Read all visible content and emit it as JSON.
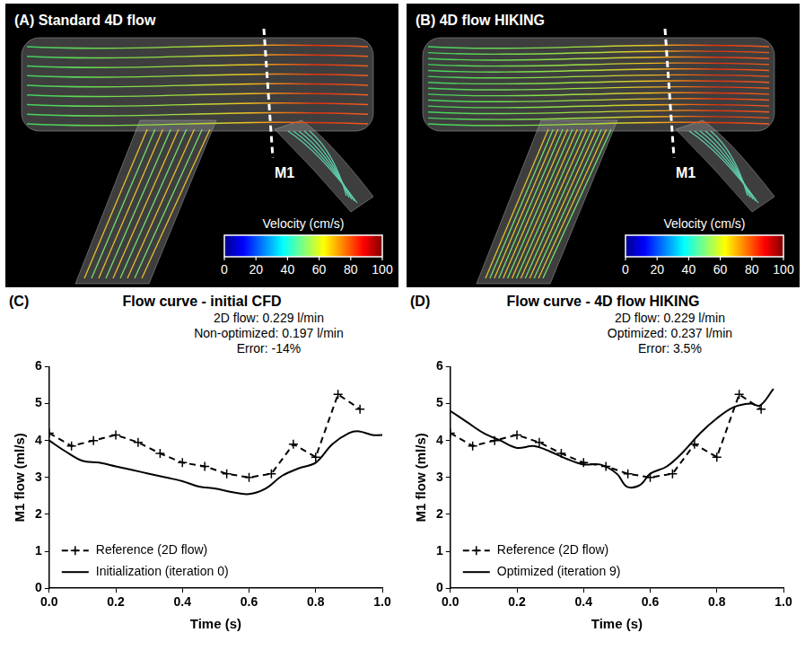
{
  "images": [
    {
      "panel": "(A)",
      "title": "Standard 4D flow",
      "marker_label": "M1",
      "colorbar": {
        "label": "Velocity (cm/s)",
        "range": [
          0,
          100
        ],
        "ticks": [
          0,
          20,
          40,
          60,
          80,
          100
        ]
      }
    },
    {
      "panel": "(B)",
      "title": "4D flow HIKING",
      "marker_label": "M1",
      "colorbar": {
        "label": "Velocity (cm/s)",
        "range": [
          0,
          100
        ],
        "ticks": [
          0,
          20,
          40,
          60,
          80,
          100
        ]
      }
    }
  ],
  "chart_data": [
    {
      "type": "line",
      "panel": "(C)",
      "title": "Flow curve - initial CFD",
      "annotations": [
        "2D flow: 0.229 l/min",
        "Non-optimized: 0.197 l/min",
        "Error: -14%"
      ],
      "x_label": "Time (s)",
      "y_label": "M1 flow (ml/s)",
      "xlim": [
        0,
        1
      ],
      "xticks": [
        {
          "value": 0,
          "label": "0.0"
        },
        0.2,
        0.4,
        0.6,
        0.8,
        {
          "value": 1,
          "label": "1.0"
        }
      ],
      "ylim": [
        0,
        6
      ],
      "yticks": [
        0,
        1,
        2,
        3,
        4,
        5,
        6
      ],
      "grid": false,
      "legend": "lower left",
      "series": [
        {
          "name": "Reference (2D flow)",
          "color": "#000000",
          "line_style": "dashed",
          "marker": "plus",
          "x": [
            0,
            0.067,
            0.133,
            0.2,
            0.267,
            0.333,
            0.4,
            0.467,
            0.533,
            0.6,
            0.667,
            0.733,
            0.8,
            0.867,
            0.933
          ],
          "values": [
            4.2,
            3.85,
            4.0,
            4.15,
            3.95,
            3.65,
            3.4,
            3.3,
            3.1,
            3.0,
            3.1,
            3.9,
            3.55,
            5.25,
            4.85
          ]
        },
        {
          "name": "Initialization (iteration 0)",
          "color": "#000000",
          "line_style": "solid",
          "marker": "none",
          "x": [
            0,
            0.05,
            0.1,
            0.15,
            0.2,
            0.25,
            0.3,
            0.35,
            0.4,
            0.45,
            0.5,
            0.55,
            0.6,
            0.65,
            0.7,
            0.75,
            0.8,
            0.85,
            0.9,
            0.93,
            0.97,
            1.0
          ],
          "values": [
            4.0,
            3.7,
            3.45,
            3.4,
            3.3,
            3.2,
            3.1,
            3.0,
            2.9,
            2.75,
            2.7,
            2.6,
            2.55,
            2.7,
            3.05,
            3.25,
            3.4,
            3.9,
            4.2,
            4.25,
            4.15,
            4.15
          ]
        }
      ]
    },
    {
      "type": "line",
      "panel": "(D)",
      "title": "Flow curve - 4D flow HIKING",
      "annotations": [
        "2D flow: 0.229 l/min",
        "Optimized: 0.237 l/min",
        "Error: 3.5%"
      ],
      "x_label": "Time (s)",
      "y_label": "M1 flow (ml/s)",
      "xlim": [
        0,
        1
      ],
      "xticks": [
        {
          "value": 0,
          "label": "0.0"
        },
        0.2,
        0.4,
        0.6,
        0.8,
        {
          "value": 1,
          "label": "1.0"
        }
      ],
      "ylim": [
        0,
        6
      ],
      "yticks": [
        0,
        1,
        2,
        3,
        4,
        5,
        6
      ],
      "grid": false,
      "legend": "lower left",
      "series": [
        {
          "name": "Reference (2D flow)",
          "color": "#000000",
          "line_style": "dashed",
          "marker": "plus",
          "x": [
            0,
            0.067,
            0.133,
            0.2,
            0.267,
            0.333,
            0.4,
            0.467,
            0.533,
            0.6,
            0.667,
            0.733,
            0.8,
            0.867,
            0.933
          ],
          "values": [
            4.2,
            3.85,
            4.0,
            4.15,
            3.95,
            3.65,
            3.4,
            3.3,
            3.1,
            3.0,
            3.1,
            3.9,
            3.55,
            5.25,
            4.85
          ]
        },
        {
          "name": "Optimized (iteration 9)",
          "color": "#000000",
          "line_style": "solid",
          "marker": "none",
          "x": [
            0,
            0.05,
            0.1,
            0.15,
            0.2,
            0.25,
            0.3,
            0.35,
            0.4,
            0.45,
            0.5,
            0.53,
            0.57,
            0.6,
            0.65,
            0.7,
            0.75,
            0.8,
            0.85,
            0.9,
            0.93,
            0.97
          ],
          "values": [
            4.8,
            4.5,
            4.2,
            4.0,
            3.8,
            3.85,
            3.7,
            3.5,
            3.35,
            3.35,
            3.1,
            2.75,
            2.8,
            3.1,
            3.3,
            3.7,
            4.2,
            4.6,
            4.9,
            5.0,
            4.95,
            5.4
          ]
        }
      ]
    }
  ]
}
